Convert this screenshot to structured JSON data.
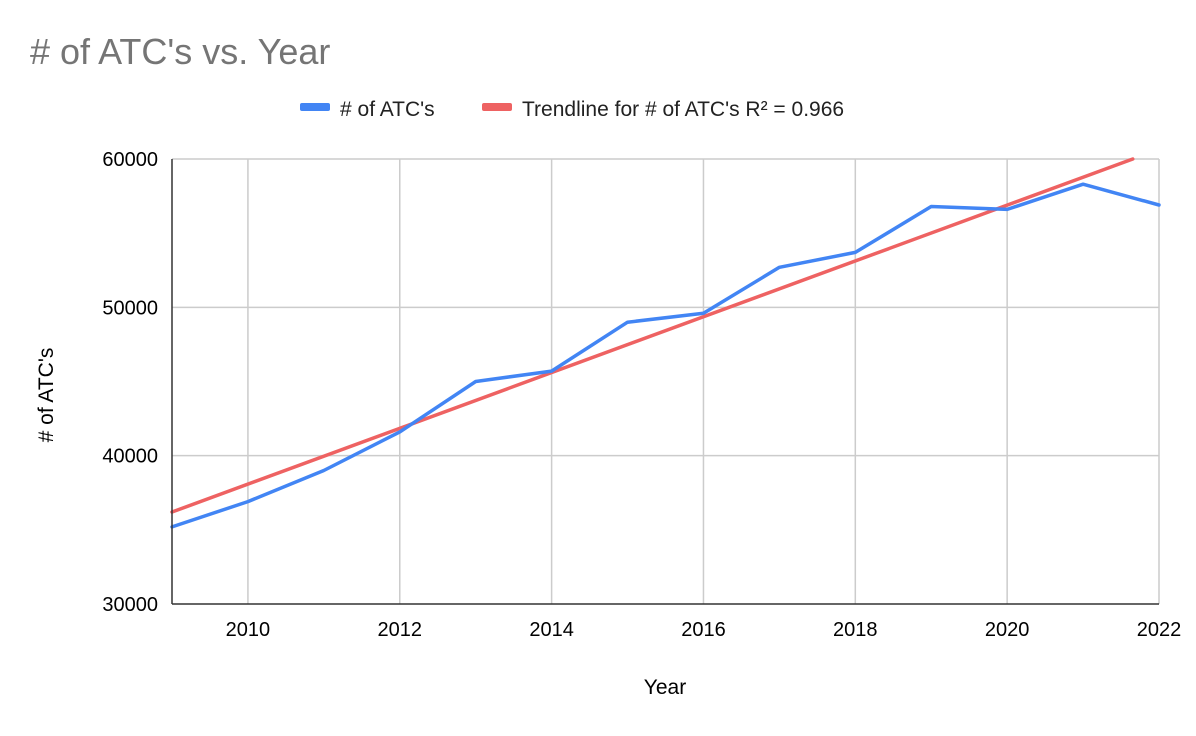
{
  "chart_data": {
    "type": "line",
    "title": "# of ATC's vs. Year",
    "xlabel": "Year",
    "ylabel": "# of ATC's",
    "xlim": [
      2009,
      2022
    ],
    "ylim": [
      30000,
      60000
    ],
    "x_ticks": [
      "2010",
      "2012",
      "2014",
      "2016",
      "2018",
      "2020",
      "2022"
    ],
    "y_ticks": [
      "30000",
      "40000",
      "50000",
      "60000"
    ],
    "grid": true,
    "legend_position": "top",
    "series": [
      {
        "name": "# of ATC's",
        "color": "#4285f4",
        "x": [
          2009,
          2010,
          2011,
          2012,
          2013,
          2014,
          2015,
          2016,
          2017,
          2018,
          2019,
          2020,
          2021,
          2022
        ],
        "y": [
          35200,
          36900,
          39000,
          41600,
          45000,
          45700,
          49000,
          49600,
          52700,
          53700,
          56800,
          56600,
          58300,
          56900
        ]
      }
    ],
    "trendline": {
      "name": "Trendline for # of ATC's R² = 0.966",
      "color": "#ee6262",
      "x": [
        2009,
        2022
      ],
      "y": [
        36200,
        60650
      ]
    }
  }
}
